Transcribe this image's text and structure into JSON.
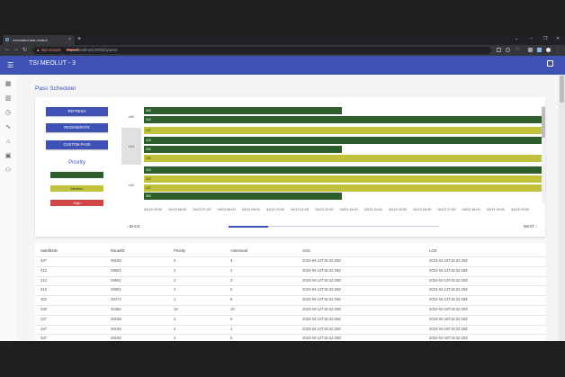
{
  "browser": {
    "tab_title": "command and control",
    "tab_close": "×",
    "new_tab": "+",
    "security_warning": "▲ Not secure",
    "url_scheme": "https://",
    "url_rest": "localhost:3000/system",
    "window_controls": [
      "⌄",
      "–",
      "❐",
      "✕"
    ]
  },
  "app": {
    "title": "TSI MEOLUT - 3"
  },
  "sidebar": {
    "icons": [
      "dashboard-icon",
      "bar-chart-icon",
      "alarm-icon",
      "timeline-icon",
      "satellite-icon",
      "map-icon",
      "people-icon"
    ]
  },
  "page": {
    "title": "Pass Scheduler"
  },
  "controls": {
    "refresh": "REFRESH",
    "regenerate": "REGENERATE",
    "custom_pass": "CUSTOM PASS",
    "priority_title": "Priority",
    "legend": [
      {
        "label": "",
        "color": "#2e5e2e",
        "text_color": "#ffffff"
      },
      {
        "label": "Medium",
        "color": "#bfc23a",
        "text_color": "#333333"
      },
      {
        "label": "High",
        "color": "#d04545",
        "text_color": "#ffffff"
      }
    ]
  },
  "gantt": {
    "groups": [
      "ch0",
      "ch1",
      "ch2"
    ],
    "bars": [
      {
        "label": "302",
        "color": "#2e5e2e"
      },
      {
        "label": "312",
        "color": "#2e5e2e"
      },
      {
        "label": "327",
        "color": "#bfc23a"
      },
      {
        "label": "312",
        "color": "#2e5e2e"
      },
      {
        "label": "302",
        "color": "#2e5e2e"
      },
      {
        "label": "329",
        "color": "#bfc23a"
      },
      {
        "label": "312",
        "color": "#2e5e2e"
      },
      {
        "label": "329",
        "color": "#bfc23a"
      },
      {
        "label": "327",
        "color": "#bfc23a"
      },
      {
        "label": "302",
        "color": "#2e5e2e"
      }
    ],
    "ticks": [
      "04/13 05:00",
      "04/13 06:00",
      "04/13 07:00",
      "04/13 08:00",
      "04/13 09:00",
      "04/13 10:00",
      "04/13 11:00",
      "04/13 12:00",
      "04/13 13:00",
      "04/13 14:00",
      "04/13 15:00",
      "04/13 16:00",
      "04/13 17:00",
      "04/13 18:00",
      "04/13 19:00",
      "04/13 20:00"
    ],
    "back": "‹ BACK",
    "next": "NEXT ›"
  },
  "table": {
    "headers": [
      "SatelliteID",
      "NoradID",
      "Priority",
      "AntennaId",
      "AOS",
      "LOS"
    ],
    "rows": [
      [
        "327",
        "39166",
        "4",
        "3",
        "2023-04-12T16:32:29Z",
        "2023-04-16T16:32:29Z"
      ],
      [
        "312",
        "29601",
        "2",
        "2",
        "2023-04-12T16:32:29Z",
        "2023-04-13T16:32:29Z"
      ],
      [
        "312",
        "29601",
        "2",
        "3",
        "2023-04-12T16:32:29Z",
        "2023-04-13T16:32:29Z"
      ],
      [
        "312",
        "29601",
        "2",
        "5",
        "2023-04-12T16:32:29Z",
        "2023-04-13T16:32:29Z"
      ],
      [
        "302",
        "28474",
        "1",
        "6",
        "2023-04-12T16:32:29Z",
        "2023-04-13T16:32:29Z"
      ],
      [
        "329",
        "32384",
        "10",
        "10",
        "2023-04-12T16:32:29Z",
        "2023-04-16T16:32:29Z"
      ],
      [
        "327",
        "39166",
        "4",
        "5",
        "2023-04-12T16:32:29Z",
        "2023-04-16T16:32:29Z"
      ],
      [
        "327",
        "39166",
        "4",
        "1",
        "2023-04-12T16:32:29Z",
        "2023-04-16T16:32:29Z"
      ],
      [
        "327",
        "39166",
        "4",
        "5",
        "2023-04-12T16:32:29Z",
        "2023-04-16T16:32:29Z"
      ]
    ]
  }
}
